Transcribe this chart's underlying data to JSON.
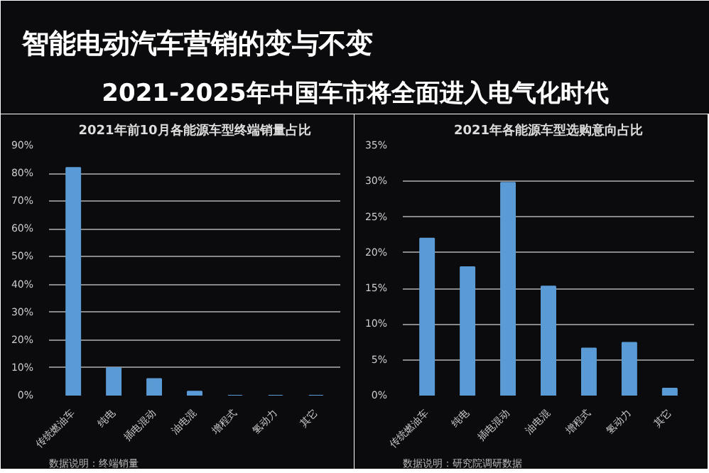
{
  "chart_data": [
    {
      "type": "other",
      "title": "智能电动汽车营销的变与不变",
      "subtitle": "2021-2025年中国车市将全面进入电气化时代"
    },
    {
      "type": "bar",
      "title": "2021年前10月各能源车型终端销量占比",
      "categories": [
        "传统燃油车",
        "纯电",
        "插电混动",
        "油电混",
        "增程式",
        "氢动力",
        "其它"
      ],
      "values": [
        82,
        10,
        6,
        1.5,
        0,
        0,
        0
      ],
      "color": "#5b9bd5",
      "ylim": [
        0,
        90
      ],
      "yticks": [
        {
          "value": 0,
          "label": "0%"
        },
        {
          "value": 10,
          "label": "10%"
        },
        {
          "value": 20,
          "label": "20%"
        },
        {
          "value": 30,
          "label": "30%"
        },
        {
          "value": 40,
          "label": "40%"
        },
        {
          "value": 50,
          "label": "50%"
        },
        {
          "value": 60,
          "label": "60%"
        },
        {
          "value": 70,
          "label": "70%"
        },
        {
          "value": 80,
          "label": "80%"
        },
        {
          "value": 90,
          "label": "90%"
        }
      ],
      "grid": "y",
      "annotations": [
        "数据说明：终端销量"
      ]
    },
    {
      "type": "bar",
      "title": "2021年各能源车型选购意向占比",
      "categories": [
        "传统燃油车",
        "纯电",
        "插电混动",
        "油电混",
        "增程式",
        "氢动力",
        "其它"
      ],
      "values": [
        22,
        18,
        29.8,
        15.3,
        6.6,
        7.4,
        1
      ],
      "color": "#5b9bd5",
      "ylim": [
        0,
        35
      ],
      "yticks": [
        {
          "value": 0,
          "label": "0%"
        },
        {
          "value": 5,
          "label": "5%"
        },
        {
          "value": 10,
          "label": "10%"
        },
        {
          "value": 15,
          "label": "15%"
        },
        {
          "value": 20,
          "label": "20%"
        },
        {
          "value": 25,
          "label": "25%"
        },
        {
          "value": 30,
          "label": "30%"
        },
        {
          "value": 35,
          "label": "35%"
        }
      ],
      "grid": "y",
      "annotations": [
        "数据说明：研究院调研数据"
      ]
    }
  ]
}
